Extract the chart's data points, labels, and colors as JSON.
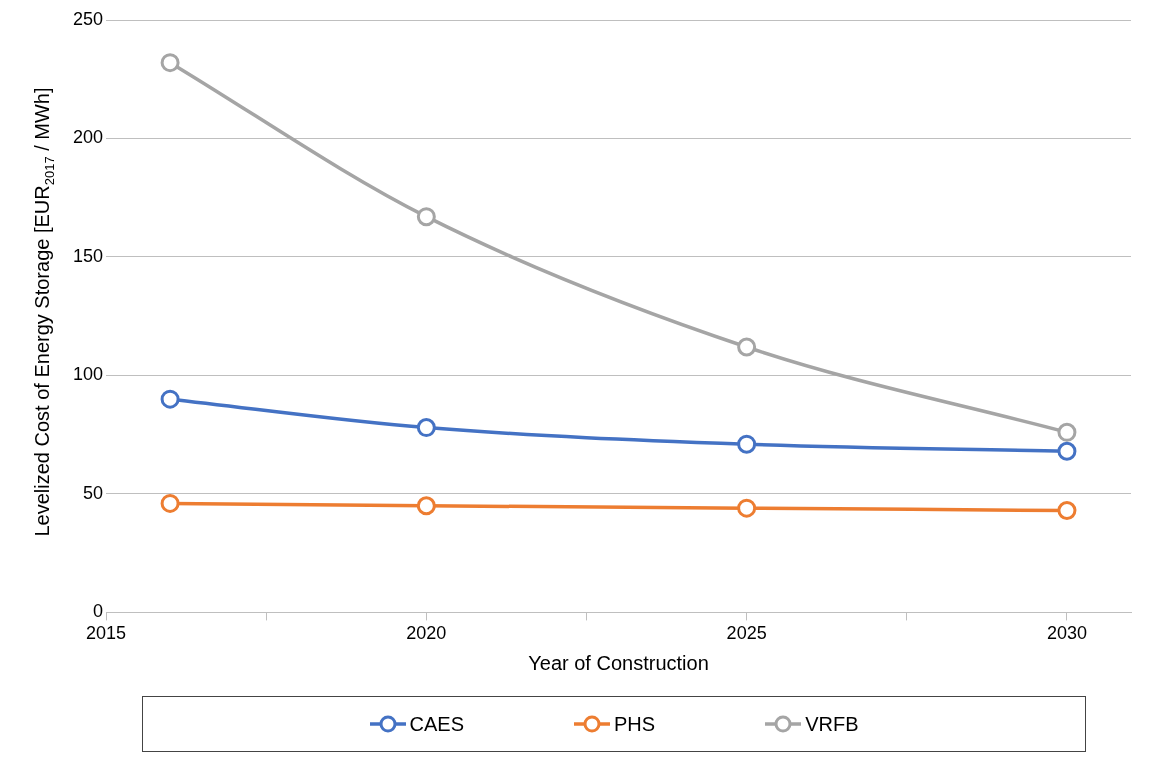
{
  "chart_data": {
    "type": "line",
    "xlabel": "Year of Construction",
    "ylabel": "Levelized Cost of Energy Storage [EUR$_{2017}$ / MWh]",
    "x": [
      2016,
      2020,
      2025,
      2030
    ],
    "series": [
      {
        "name": "CAES",
        "color": "#4472c4",
        "values": [
          90,
          78,
          71,
          68
        ]
      },
      {
        "name": "PHS",
        "color": "#ed7d31",
        "values": [
          46,
          45,
          44,
          43
        ]
      },
      {
        "name": "VRFB",
        "color": "#a5a5a5",
        "values": [
          232,
          167,
          112,
          76
        ]
      }
    ],
    "xlim": [
      2015,
      2031
    ],
    "xticks": [
      2015,
      {
        "value": 2017.5,
        "label": null
      },
      2020,
      {
        "value": 2022.5,
        "label": null
      },
      2025,
      {
        "value": 2027.5,
        "label": null
      },
      2030
    ],
    "ylim": [
      0,
      250
    ],
    "yticks": [
      0,
      50,
      100,
      150,
      200,
      250
    ],
    "grid": "y",
    "legend": "bottom",
    "marker": "circle",
    "line_style": "solid"
  }
}
